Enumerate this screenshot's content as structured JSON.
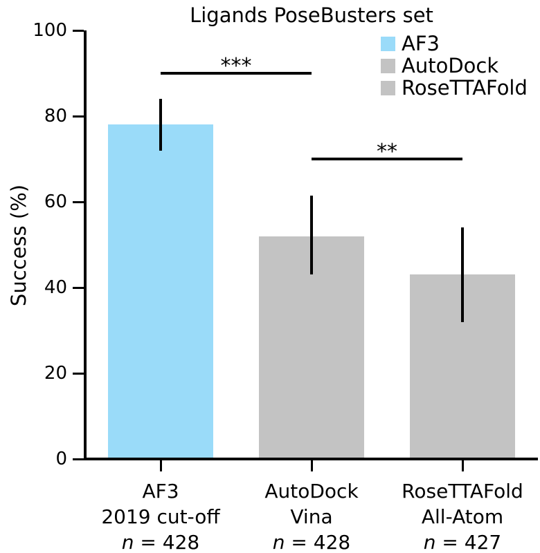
{
  "chart_data": {
    "type": "bar",
    "title": "Ligands PoseBusters set",
    "ylabel": "Success (%)",
    "ylim": [
      0,
      100
    ],
    "yticks": [
      0,
      20,
      40,
      60,
      80,
      100
    ],
    "grid": false,
    "legend_position": "upper right",
    "categories": [
      {
        "line1": "AF3",
        "line2": "2019 cut-off",
        "n_italic": "n",
        "n_rest": " = 428"
      },
      {
        "line1": "AutoDock",
        "line2": "Vina",
        "n_italic": "n",
        "n_rest": " = 428"
      },
      {
        "line1": "RoseTTAFold",
        "line2": "All-Atom",
        "n_italic": "n",
        "n_rest": " = 427"
      }
    ],
    "values": [
      78,
      52,
      43
    ],
    "error_low": [
      72,
      43,
      32
    ],
    "error_high": [
      84,
      61.5,
      54
    ],
    "bar_colors": [
      "#9ADBF9",
      "#C3C3C3",
      "#C3C3C3"
    ],
    "legend": [
      {
        "label": "AF3",
        "color": "#9ADBF9"
      },
      {
        "label": "AutoDock",
        "color": "#C3C3C3"
      },
      {
        "label": "RoseTTAFold",
        "color": "#C3C3C3"
      }
    ],
    "significance": [
      {
        "from": 0,
        "to": 1,
        "y": 90,
        "label": "***"
      },
      {
        "from": 1,
        "to": 2,
        "y": 70,
        "label": "**"
      }
    ],
    "colors": {
      "axis": "#000000",
      "text": "#000000",
      "background": "#ffffff"
    }
  }
}
